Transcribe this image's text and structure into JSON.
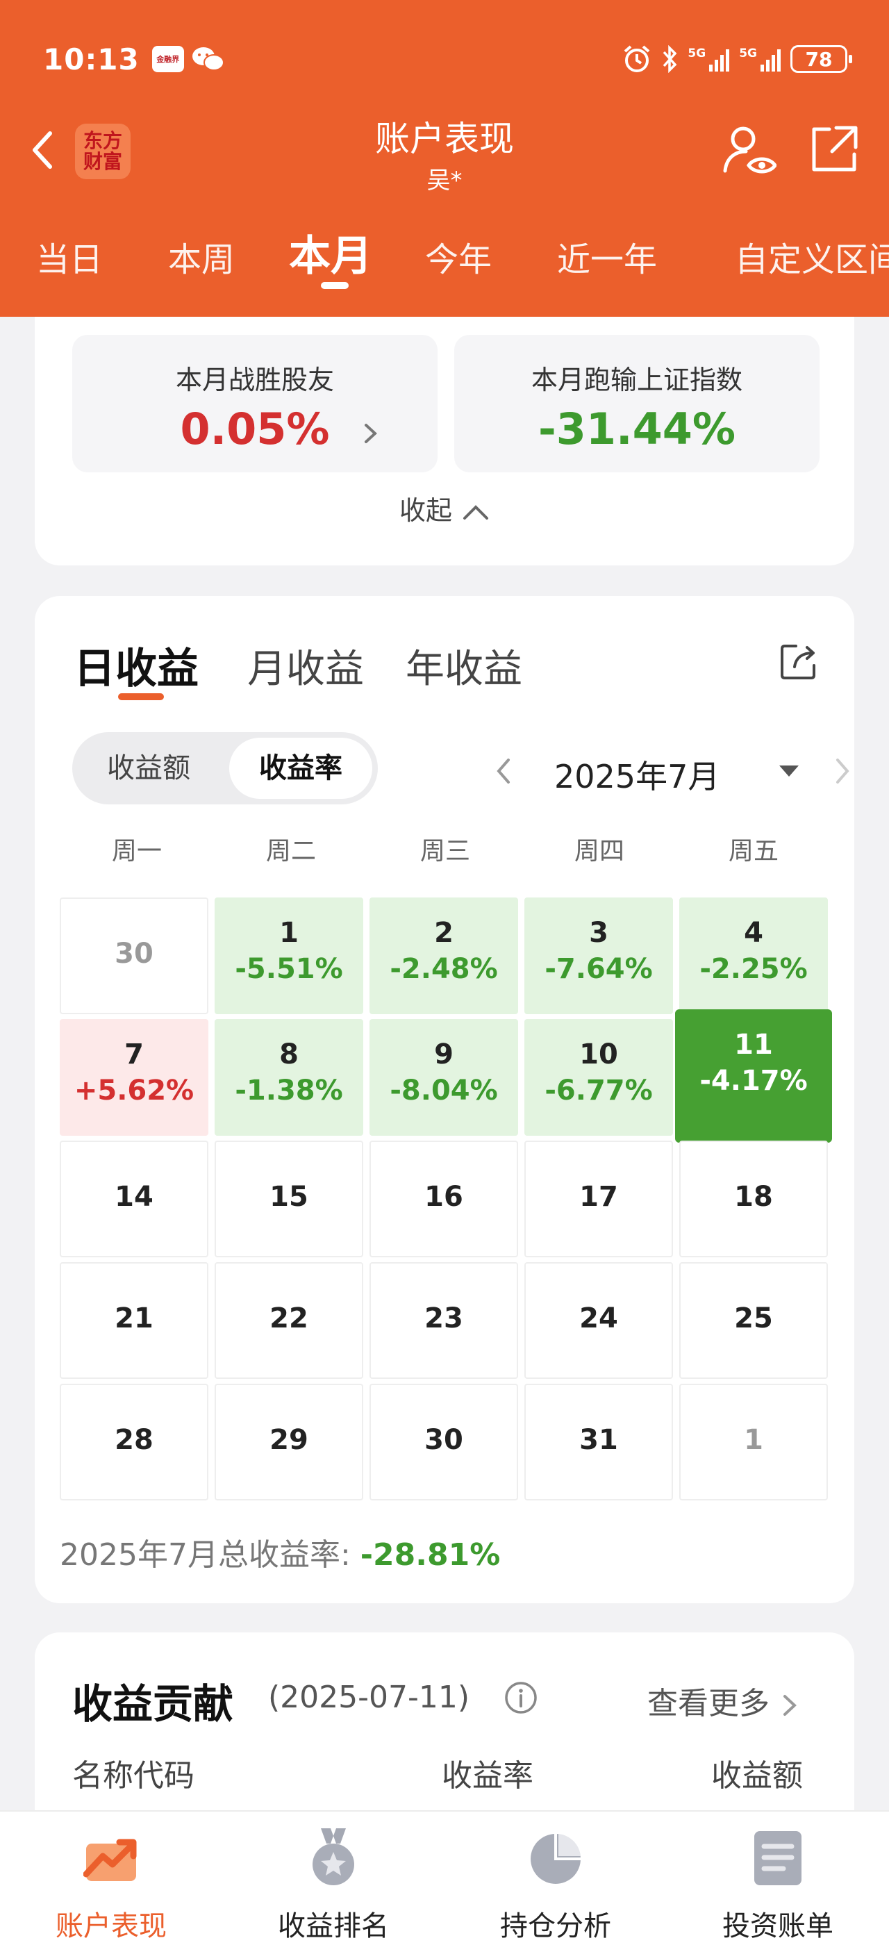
{
  "status_bar": {
    "time": "10:13",
    "app_badge": "金融界",
    "signal1": "5G",
    "signal2": "5G",
    "battery": "78"
  },
  "header": {
    "logo_line1": "东方",
    "logo_line2": "财富",
    "title": "账户表现",
    "subtitle": "吴*"
  },
  "period_tabs": [
    "当日",
    "本周",
    "本月",
    "今年",
    "近一年",
    "自定义区间"
  ],
  "summary": {
    "beat_label": "本月战胜股友",
    "beat_value": "0.05%",
    "index_label": "本月跑输上证指数",
    "index_value": "-31.44%",
    "collapse": "收起"
  },
  "returns": {
    "tabs": [
      "日收益",
      "月收益",
      "年收益"
    ],
    "mode_amount": "收益额",
    "mode_rate": "收益率",
    "month": "2025年7月",
    "weekdays": [
      "周一",
      "周二",
      "周三",
      "周四",
      "周五"
    ],
    "calendar": [
      [
        {
          "d": "30"
        },
        {
          "d": "1",
          "p": "-5.51%"
        },
        {
          "d": "2",
          "p": "-2.48%"
        },
        {
          "d": "3",
          "p": "-7.64%"
        },
        {
          "d": "4",
          "p": "-2.25%"
        }
      ],
      [
        {
          "d": "7",
          "p": "+5.62%"
        },
        {
          "d": "8",
          "p": "-1.38%"
        },
        {
          "d": "9",
          "p": "-8.04%"
        },
        {
          "d": "10",
          "p": "-6.77%"
        },
        {
          "d": "11",
          "p": "-4.17%"
        }
      ],
      [
        {
          "d": "14"
        },
        {
          "d": "15"
        },
        {
          "d": "16"
        },
        {
          "d": "17"
        },
        {
          "d": "18"
        }
      ],
      [
        {
          "d": "21"
        },
        {
          "d": "22"
        },
        {
          "d": "23"
        },
        {
          "d": "24"
        },
        {
          "d": "25"
        }
      ],
      [
        {
          "d": "28"
        },
        {
          "d": "29"
        },
        {
          "d": "30"
        },
        {
          "d": "31"
        },
        {
          "d": "1"
        }
      ]
    ],
    "selected_day": "11",
    "total_label": "2025年7月总收益率:",
    "total_value": "-28.81%"
  },
  "contribution": {
    "title": "收益贡献",
    "date": "(2025-07-11)",
    "more": "查看更多",
    "col_name": "名称代码",
    "col_rate": "收益率",
    "col_amount": "收益额"
  },
  "bottom_nav": [
    "账户表现",
    "收益排名",
    "持仓分析",
    "投资账单"
  ],
  "colors": {
    "brand": "#eb5f2c",
    "loss": "#3d9a2e",
    "gain": "#d43030"
  }
}
